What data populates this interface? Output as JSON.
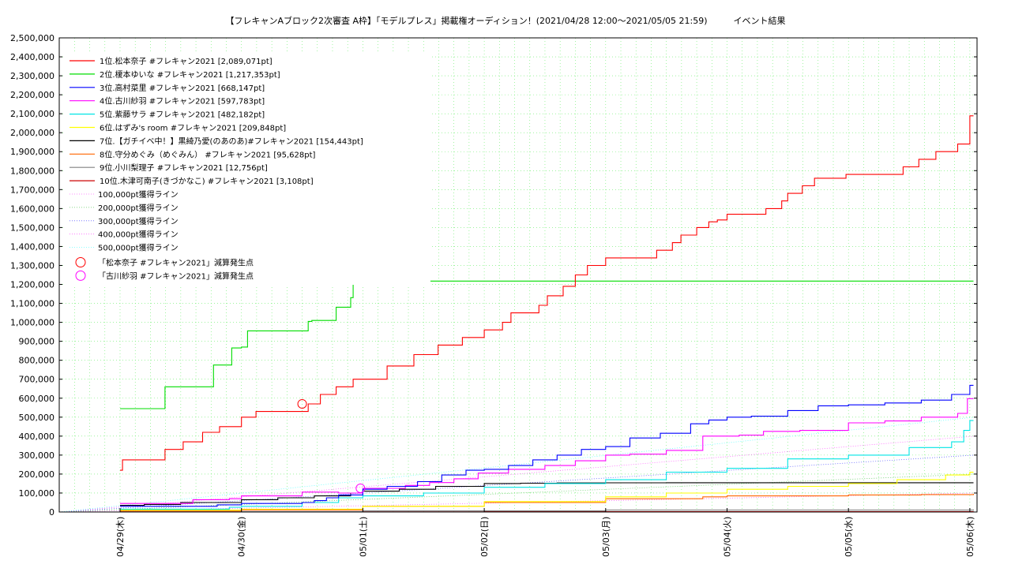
{
  "chart_data": {
    "type": "line",
    "title": "【フレキャンAブロック2次審査 A枠】「モデルプレス」掲載権オーディション！(2021/04/28 12:00〜2021/05/05 21:59)　　　イベント結果",
    "ylim": [
      0,
      2500000
    ],
    "y_ticks": [
      "0",
      "100,000",
      "200,000",
      "300,000",
      "400,000",
      "500,000",
      "600,000",
      "700,000",
      "800,000",
      "900,000",
      "1,000,000",
      "1,100,000",
      "1,200,000",
      "1,300,000",
      "1,400,000",
      "1,500,000",
      "1,600,000",
      "1,700,000",
      "1,800,000",
      "1,900,000",
      "2,000,000",
      "2,100,000",
      "2,200,000",
      "2,300,000",
      "2,400,000",
      "2,500,000"
    ],
    "x_ticks": [
      "04/29(木)",
      "04/30(金)",
      "05/01(土)",
      "05/02(日)",
      "05/03(月)",
      "05/04(火)",
      "05/05(水)",
      "05/06(木)"
    ],
    "xlim_days": [
      -0.5,
      7.04
    ],
    "grid": true,
    "legend_position": "top-left",
    "series": [
      {
        "name": "1位.松本奈子 #フレキャン2021 [2,089,071pt]",
        "color": "#ff0000",
        "x": [
          0,
          0.02,
          0.35,
          0.37,
          0.5,
          0.52,
          0.65,
          0.68,
          0.8,
          0.82,
          0.95,
          1.0,
          1.08,
          1.12,
          1.35,
          1.55,
          1.62,
          1.65,
          1.75,
          1.78,
          1.86,
          1.92,
          2.0,
          2.2,
          2.35,
          2.42,
          2.55,
          2.62,
          2.72,
          2.82,
          3.0,
          3.15,
          3.22,
          3.35,
          3.45,
          3.52,
          3.65,
          3.75,
          3.85,
          4.0,
          4.3,
          4.42,
          4.55,
          4.62,
          4.75,
          4.85,
          4.92,
          5.0,
          5.2,
          5.32,
          5.45,
          5.5,
          5.62,
          5.72,
          5.85,
          5.98,
          6.2,
          6.45,
          6.58,
          6.72,
          6.8,
          6.9,
          6.95,
          7.0,
          7.03
        ],
        "y": [
          220000,
          275000,
          275000,
          330000,
          330000,
          370000,
          370000,
          420000,
          420000,
          450000,
          450000,
          500000,
          500000,
          530000,
          530000,
          570000,
          570000,
          620000,
          620000,
          660000,
          660000,
          700000,
          700000,
          770000,
          770000,
          830000,
          830000,
          880000,
          880000,
          920000,
          960000,
          1000000,
          1050000,
          1050000,
          1090000,
          1140000,
          1190000,
          1250000,
          1300000,
          1340000,
          1340000,
          1380000,
          1420000,
          1460000,
          1500000,
          1530000,
          1540000,
          1570000,
          1570000,
          1600000,
          1640000,
          1680000,
          1720000,
          1760000,
          1760000,
          1780000,
          1780000,
          1820000,
          1860000,
          1900000,
          1900000,
          1940000,
          1940000,
          2089071,
          2089071
        ]
      },
      {
        "name": "2位.榎本ゆいな #フレキャン2021 [1,217,353pt]",
        "color": "#00dd00",
        "x": [
          0,
          0.35,
          0.37,
          0.75,
          0.77,
          0.88,
          0.92,
          1.0,
          1.05,
          1.35,
          1.55,
          1.58,
          1.78,
          1.82,
          1.9,
          1.92,
          7.03
        ],
        "y": [
          545000,
          545000,
          660000,
          660000,
          775000,
          775000,
          865000,
          870000,
          955000,
          955000,
          1005000,
          1010000,
          1080000,
          1080000,
          1130000,
          1217353,
          1217353
        ]
      },
      {
        "name": "3位.高村菜里 #フレキャン2021 [668,147pt]",
        "color": "#0000ff",
        "x": [
          0,
          0.5,
          0.8,
          1.0,
          1.2,
          1.5,
          1.6,
          1.7,
          1.8,
          2.0,
          2.2,
          2.45,
          2.65,
          2.85,
          3.0,
          3.2,
          3.4,
          3.6,
          3.8,
          4.0,
          4.2,
          4.45,
          4.7,
          4.85,
          5.0,
          5.2,
          5.5,
          5.75,
          6.0,
          6.3,
          6.6,
          6.85,
          7.0,
          7.03
        ],
        "y": [
          30000,
          30000,
          38000,
          45000,
          45000,
          50000,
          60000,
          75000,
          90000,
          120000,
          135000,
          160000,
          195000,
          220000,
          225000,
          245000,
          275000,
          300000,
          330000,
          345000,
          390000,
          415000,
          465000,
          485000,
          500000,
          505000,
          535000,
          560000,
          565000,
          575000,
          590000,
          620000,
          668147,
          668147
        ]
      },
      {
        "name": "4位.古川紗羽 #フレキャン2021 [597,783pt]",
        "color": "#ff00ff",
        "x": [
          0,
          0.4,
          0.6,
          0.9,
          1.0,
          1.5,
          1.8,
          2.0,
          2.35,
          2.55,
          2.75,
          2.95,
          3.2,
          3.5,
          3.75,
          4.0,
          4.2,
          4.5,
          4.8,
          5.1,
          5.3,
          5.6,
          6.0,
          6.3,
          6.6,
          6.9,
          6.98,
          7.03
        ],
        "y": [
          45000,
          45000,
          65000,
          70000,
          85000,
          105000,
          100000,
          125000,
          140000,
          155000,
          175000,
          205000,
          225000,
          245000,
          270000,
          300000,
          305000,
          325000,
          400000,
          405000,
          425000,
          430000,
          470000,
          480000,
          500000,
          520000,
          597783,
          597783
        ]
      },
      {
        "name": "5位.紫藤サラ #フレキャン2021 [482,182pt]",
        "color": "#00e5e5",
        "x": [
          0,
          0.5,
          0.9,
          1.0,
          1.5,
          1.8,
          2.0,
          2.5,
          3.0,
          3.5,
          4.0,
          4.5,
          5.0,
          5.5,
          6.0,
          6.5,
          6.85,
          6.95,
          7.0,
          7.03
        ],
        "y": [
          15000,
          15000,
          25000,
          30000,
          50000,
          75000,
          85000,
          100000,
          130000,
          150000,
          170000,
          210000,
          230000,
          280000,
          300000,
          340000,
          370000,
          430000,
          482182,
          482182
        ]
      },
      {
        "name": "6位.はずみ's room #フレキャン2021 [209,848pt]",
        "color": "#ffff00",
        "x": [
          0,
          1.0,
          2.0,
          3.0,
          4.0,
          4.5,
          5.0,
          5.5,
          6.0,
          6.4,
          6.8,
          7.0,
          7.03
        ],
        "y": [
          10000,
          15000,
          30000,
          55000,
          80000,
          100000,
          120000,
          135000,
          150000,
          170000,
          195000,
          209848,
          209848
        ]
      },
      {
        "name": "7位.【ガチイベ中！】黒綺乃愛(のあのあ)#フレキャン2021 [154,443pt]",
        "color": "#000000",
        "x": [
          0,
          0.2,
          0.5,
          1.0,
          1.3,
          1.6,
          1.9,
          2.0,
          2.3,
          2.6,
          3.0,
          3.3,
          3.6,
          4.0,
          4.5,
          5.0,
          6.0,
          7.03
        ],
        "y": [
          35000,
          40000,
          50000,
          65000,
          75000,
          85000,
          100000,
          110000,
          120000,
          135000,
          150000,
          152000,
          153000,
          154000,
          154443,
          154443,
          154443,
          154443
        ]
      },
      {
        "name": "8位.守分めぐみ（めぐみん） #フレキャン2021 [95,628pt]",
        "color": "#ff6600",
        "x": [
          0,
          1.0,
          2.0,
          3.0,
          4.0,
          4.8,
          5.0,
          6.0,
          6.6,
          7.03
        ],
        "y": [
          5000,
          10000,
          30000,
          50000,
          70000,
          80000,
          85000,
          90000,
          92000,
          95628
        ]
      },
      {
        "name": "9位.小川梨理子 #フレキャン2021 [12,756pt]",
        "color": "#808080",
        "x": [
          0,
          2.0,
          4.0,
          7.03
        ],
        "y": [
          2000,
          6000,
          10000,
          12756
        ]
      },
      {
        "name": "10位.木津可南子(きづかなこ) #フレキャン2021 [3,108pt]",
        "color": "#cc0000",
        "x": [
          0,
          3.0,
          7.03
        ],
        "y": [
          1000,
          2000,
          3108
        ]
      }
    ],
    "reference_lines": [
      {
        "name": "100,000pt獲得ライン",
        "color": "#ff66ff",
        "value": 100000
      },
      {
        "name": "200,000pt獲得ライン",
        "color": "#66cc66",
        "value": 200000
      },
      {
        "name": "300,000pt獲得ライン",
        "color": "#6666ff",
        "value": 300000
      },
      {
        "name": "400,000pt獲得ライン",
        "color": "#ff66ff",
        "value": 400000
      },
      {
        "name": "500,000pt獲得ライン",
        "color": "#66ffff",
        "value": 500000
      }
    ],
    "markers": [
      {
        "name": "「松本奈子 #フレキャン2021」減算発生点",
        "color": "#ff0000",
        "x": 1.5,
        "y": 570000
      },
      {
        "name": "「古川紗羽 #フレキャン2021」減算発生点",
        "color": "#ff00ff",
        "x": 1.98,
        "y": 125000
      }
    ]
  }
}
